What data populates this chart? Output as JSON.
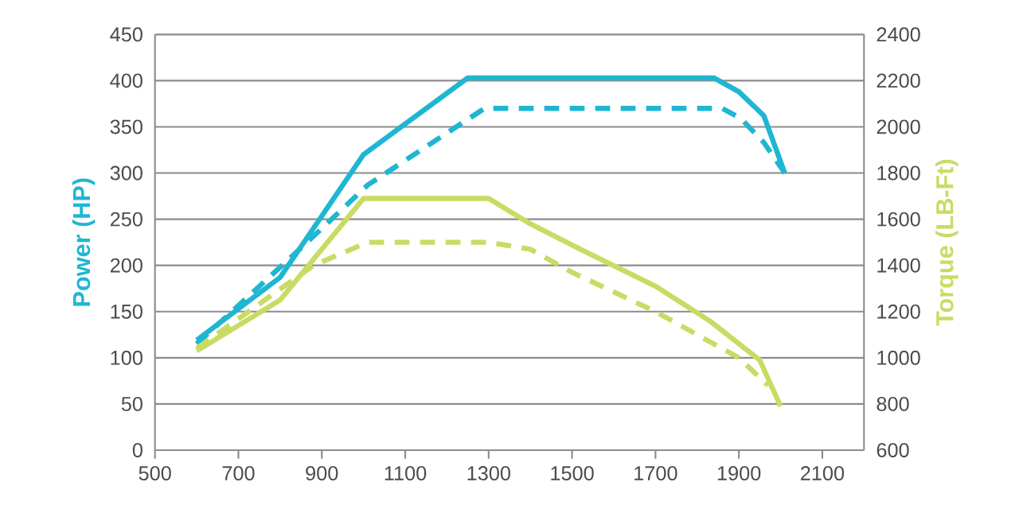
{
  "chart_data": {
    "type": "line",
    "ylabel": "Power (HP)",
    "y2label": "Torque (LB-Ft)",
    "series": [
      {
        "color": "#1fb6d2",
        "line_style": "solid",
        "x": [
          600,
          800,
          1000,
          1250,
          1840,
          1900,
          1960,
          2010
        ],
        "values": [
          119,
          187,
          320,
          403,
          403,
          388,
          362,
          300
        ]
      },
      {
        "color": "#1fb6d2",
        "line_style": "dashed",
        "x": [
          600,
          860,
          1010,
          1290,
          1860,
          1905,
          1960,
          2010
        ],
        "values": [
          115,
          223,
          287,
          370,
          370,
          359,
          333,
          300
        ]
      },
      {
        "color": "#c8dc64",
        "line_style": "solid",
        "axis": "y2",
        "x": [
          600,
          800,
          1000,
          1300,
          1400,
          1520,
          1700,
          1830,
          1950,
          2000
        ],
        "values": [
          1030,
          1250,
          1690,
          1690,
          1580,
          1470,
          1310,
          1160,
          990,
          790
        ]
      },
      {
        "color": "#c8dc64",
        "line_style": "dashed",
        "axis": "y2",
        "x": [
          600,
          880,
          1010,
          1300,
          1400,
          1500,
          1700,
          1900,
          1970
        ],
        "values": [
          1040,
          1400,
          1500,
          1500,
          1470,
          1370,
          1200,
          1000,
          880
        ]
      }
    ],
    "xlim": [
      500,
      2200
    ],
    "xticks": [
      500,
      700,
      900,
      1100,
      1300,
      1500,
      1700,
      1900,
      2100
    ],
    "ylim": [
      0,
      450
    ],
    "yticks": [
      0,
      50,
      100,
      150,
      200,
      250,
      300,
      350,
      400,
      450
    ],
    "y2lim": [
      600,
      2400
    ],
    "y2ticks": [
      600,
      800,
      1000,
      1200,
      1400,
      1600,
      1800,
      2000,
      2200,
      2400
    ],
    "grid": "y",
    "marker": "none"
  }
}
